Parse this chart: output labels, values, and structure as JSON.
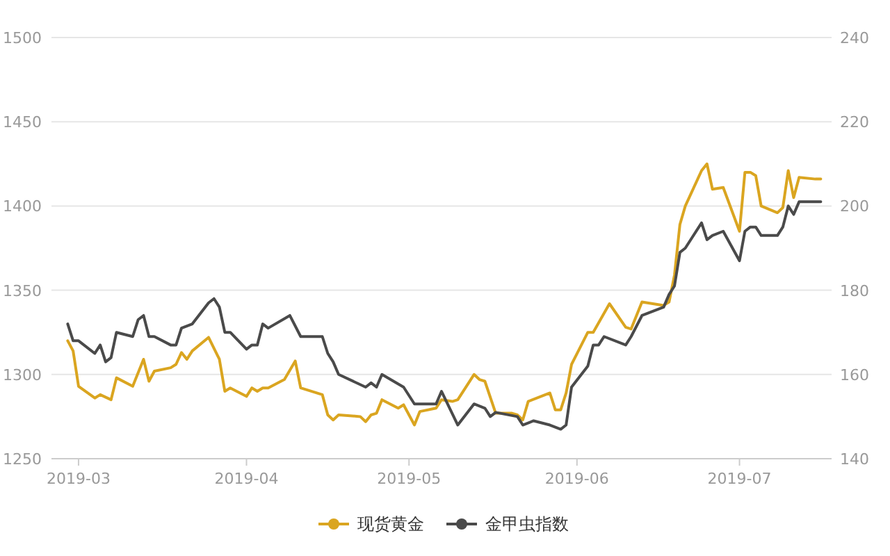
{
  "chart_data": {
    "type": "line",
    "legend": "bottom",
    "grid": "y",
    "marker": "none",
    "xlim": [
      "2019-02-24",
      "2019-07-18"
    ],
    "xticks": [
      "2019-03",
      "2019-04",
      "2019-05",
      "2019-06",
      "2019-07"
    ],
    "ylim": [
      1250,
      1500
    ],
    "yticks": [
      1250,
      1300,
      1350,
      1400,
      1450,
      1500
    ],
    "y2lim": [
      140,
      240
    ],
    "y2ticks": [
      140,
      160,
      180,
      200,
      220,
      240
    ],
    "series": [
      {
        "name": "现货黄金",
        "color": "#daa520",
        "x": [
          "2019-02-27",
          "2019-02-28",
          "2019-03-01",
          "2019-03-04",
          "2019-03-05",
          "2019-03-07",
          "2019-03-08",
          "2019-03-11",
          "2019-03-13",
          "2019-03-14",
          "2019-03-15",
          "2019-03-18",
          "2019-03-19",
          "2019-03-20",
          "2019-03-21",
          "2019-03-22",
          "2019-03-25",
          "2019-03-27",
          "2019-03-28",
          "2019-03-29",
          "2019-04-01",
          "2019-04-02",
          "2019-04-03",
          "2019-04-04",
          "2019-04-05",
          "2019-04-08",
          "2019-04-10",
          "2019-04-11",
          "2019-04-15",
          "2019-04-16",
          "2019-04-17",
          "2019-04-18",
          "2019-04-22",
          "2019-04-23",
          "2019-04-24",
          "2019-04-25",
          "2019-04-26",
          "2019-04-29",
          "2019-04-30",
          "2019-05-02",
          "2019-05-03",
          "2019-05-06",
          "2019-05-07",
          "2019-05-09",
          "2019-05-10",
          "2019-05-13",
          "2019-05-14",
          "2019-05-15",
          "2019-05-17",
          "2019-05-20",
          "2019-05-21",
          "2019-05-22",
          "2019-05-23",
          "2019-05-27",
          "2019-05-28",
          "2019-05-29",
          "2019-05-30",
          "2019-05-31",
          "2019-06-03",
          "2019-06-04",
          "2019-06-07",
          "2019-06-10",
          "2019-06-11",
          "2019-06-13",
          "2019-06-17",
          "2019-06-18",
          "2019-06-19",
          "2019-06-20",
          "2019-06-21",
          "2019-06-24",
          "2019-06-25",
          "2019-06-26",
          "2019-06-28",
          "2019-07-01",
          "2019-07-02",
          "2019-07-03",
          "2019-07-04",
          "2019-07-05",
          "2019-07-08",
          "2019-07-09",
          "2019-07-10",
          "2019-07-11",
          "2019-07-12",
          "2019-07-15",
          "2019-07-16"
        ],
        "values": [
          1320,
          1314,
          1293,
          1286,
          1288,
          1285,
          1298,
          1293,
          1309,
          1296,
          1302,
          1304,
          1306,
          1313,
          1309,
          1314,
          1322,
          1309,
          1290,
          1292,
          1287,
          1292,
          1290,
          1292,
          1292,
          1297,
          1308,
          1292,
          1288,
          1276,
          1273,
          1276,
          1275,
          1272,
          1276,
          1277,
          1285,
          1280,
          1282,
          1270,
          1278,
          1280,
          1285,
          1284,
          1285,
          1300,
          1297,
          1296,
          1277,
          1277,
          1276,
          1273,
          1284,
          1289,
          1279,
          1279,
          1289,
          1306,
          1325,
          1325,
          1342,
          1328,
          1327,
          1343,
          1341,
          1343,
          1359,
          1389,
          1400,
          1421,
          1425,
          1410,
          1411,
          1385,
          1420,
          1420,
          1418,
          1400,
          1396,
          1399,
          1421,
          1405,
          1417,
          1416,
          1416
        ]
      },
      {
        "name": "金甲虫指数",
        "color": "#4a4a4a",
        "axis": "y2",
        "x": [
          "2019-02-27",
          "2019-02-28",
          "2019-03-01",
          "2019-03-04",
          "2019-03-05",
          "2019-03-06",
          "2019-03-07",
          "2019-03-08",
          "2019-03-11",
          "2019-03-12",
          "2019-03-13",
          "2019-03-14",
          "2019-03-15",
          "2019-03-18",
          "2019-03-19",
          "2019-03-20",
          "2019-03-22",
          "2019-03-25",
          "2019-03-26",
          "2019-03-27",
          "2019-03-28",
          "2019-03-29",
          "2019-04-01",
          "2019-04-02",
          "2019-04-03",
          "2019-04-04",
          "2019-04-05",
          "2019-04-09",
          "2019-04-11",
          "2019-04-12",
          "2019-04-15",
          "2019-04-16",
          "2019-04-17",
          "2019-04-18",
          "2019-04-23",
          "2019-04-24",
          "2019-04-25",
          "2019-04-26",
          "2019-04-30",
          "2019-05-02",
          "2019-05-03",
          "2019-05-06",
          "2019-05-07",
          "2019-05-10",
          "2019-05-13",
          "2019-05-15",
          "2019-05-16",
          "2019-05-17",
          "2019-05-21",
          "2019-05-22",
          "2019-05-24",
          "2019-05-27",
          "2019-05-29",
          "2019-05-30",
          "2019-05-31",
          "2019-06-03",
          "2019-06-04",
          "2019-06-05",
          "2019-06-06",
          "2019-06-10",
          "2019-06-11",
          "2019-06-13",
          "2019-06-17",
          "2019-06-18",
          "2019-06-19",
          "2019-06-20",
          "2019-06-21",
          "2019-06-24",
          "2019-06-25",
          "2019-06-26",
          "2019-06-28",
          "2019-07-01",
          "2019-07-02",
          "2019-07-03",
          "2019-07-04",
          "2019-07-05",
          "2019-07-08",
          "2019-07-09",
          "2019-07-10",
          "2019-07-11",
          "2019-07-12",
          "2019-07-16"
        ],
        "values": [
          172,
          168,
          168,
          165,
          167,
          163,
          164,
          170,
          169,
          173,
          174,
          169,
          169,
          167,
          167,
          171,
          172,
          177,
          178,
          176,
          170,
          170,
          166,
          167,
          167,
          172,
          171,
          174,
          169,
          169,
          169,
          165,
          163,
          160,
          157,
          158,
          157,
          160,
          157,
          153,
          153,
          153,
          156,
          148,
          153,
          152,
          150,
          151,
          150,
          148,
          149,
          148,
          147,
          148,
          157,
          162,
          167,
          167,
          169,
          167,
          169,
          174,
          176,
          179,
          181,
          189,
          190,
          196,
          192,
          193,
          194,
          187,
          194,
          195,
          195,
          193,
          193,
          195,
          200,
          198,
          201,
          201
        ]
      }
    ]
  }
}
